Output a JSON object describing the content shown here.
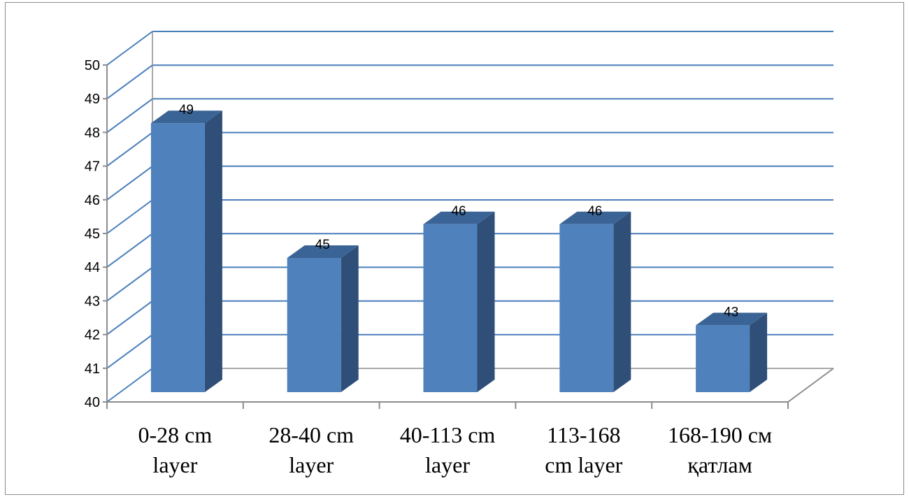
{
  "chart_data": {
    "type": "bar",
    "style": "3d-column",
    "categories": [
      [
        "0-28 cm",
        "layer"
      ],
      [
        "28-40 cm",
        "layer"
      ],
      [
        "40-113 cm",
        "layer"
      ],
      [
        "113-168",
        "cm layer"
      ],
      [
        "168-190 см",
        "қатлам"
      ]
    ],
    "values": [
      49,
      45,
      46,
      46,
      43
    ],
    "data_labels": [
      "49",
      "45",
      "46",
      "46",
      "43"
    ],
    "ylim": [
      40,
      50
    ],
    "yticks": [
      "40",
      "41",
      "42",
      "43",
      "44",
      "45",
      "46",
      "47",
      "48",
      "49",
      "50"
    ],
    "grid": true,
    "legend": "none",
    "title": "",
    "xlabel": "",
    "ylabel": "",
    "colors": {
      "bar_front": "#4f81bd",
      "bar_side": "#2f4f78",
      "bar_top": "#3b6496",
      "gridline": "#4a7ebb",
      "axis": "#8c8c8c"
    }
  }
}
